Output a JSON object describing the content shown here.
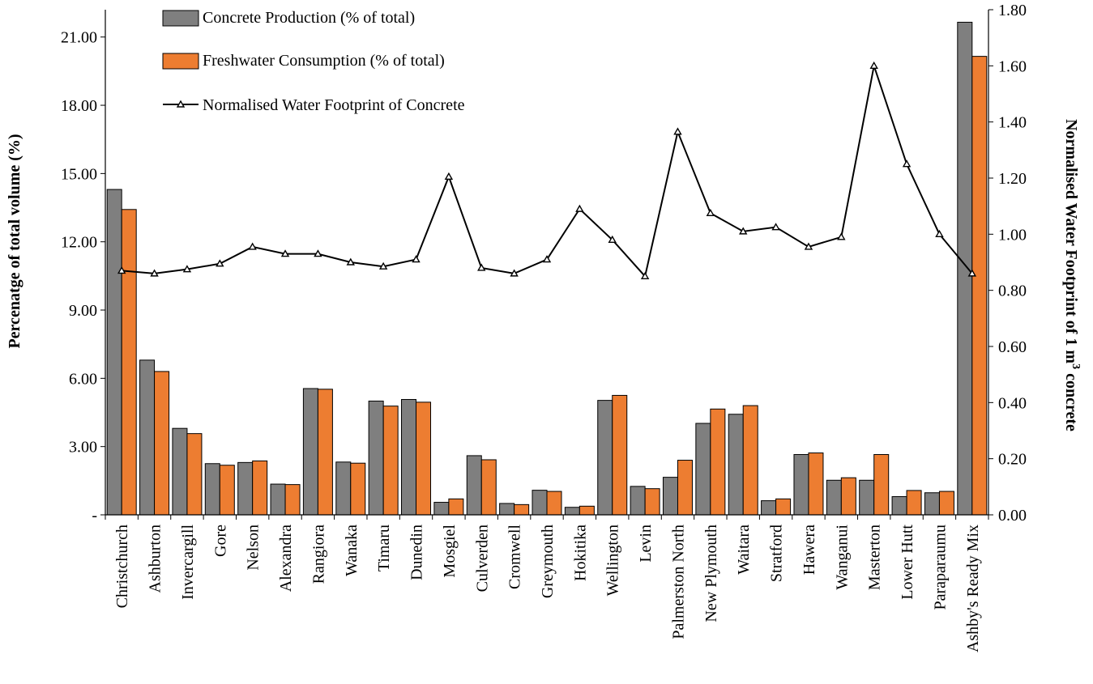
{
  "chart_data": {
    "type": "bar",
    "title": "",
    "categories": [
      "Christchurch",
      "Ashburton",
      "Invercargill",
      "Gore",
      "Nelson",
      "Alexandra",
      "Rangiora",
      "Wanaka",
      "Timaru",
      "Dunedin",
      "Mosgiel",
      "Culverden",
      "Cromwell",
      "Greymouth",
      "Hokitika",
      "Wellington",
      "Levin",
      "Palmerston North",
      "New Plymouth",
      "Waitara",
      "Stratford",
      "Hawera",
      "Wanganui",
      "Masterton",
      "Lower Hutt",
      "Paraparaumu",
      "Ashby's Ready Mix"
    ],
    "series": [
      {
        "name": "Concrete Production (% of total)",
        "type": "bar",
        "axis": "left",
        "color": "#7f7f7f",
        "values": [
          14.3,
          6.8,
          3.8,
          2.25,
          2.3,
          1.35,
          5.55,
          2.32,
          5.0,
          5.07,
          0.55,
          2.6,
          0.5,
          1.08,
          0.33,
          5.03,
          1.25,
          1.65,
          4.02,
          4.42,
          0.62,
          2.65,
          1.52,
          1.52,
          0.8,
          0.97,
          21.65
        ]
      },
      {
        "name": "Freshwater Consumption (% of total)",
        "type": "bar",
        "axis": "left",
        "color": "#ed7d31",
        "values": [
          13.42,
          6.3,
          3.57,
          2.18,
          2.37,
          1.33,
          5.52,
          2.27,
          4.78,
          4.95,
          0.7,
          2.42,
          0.45,
          1.03,
          0.38,
          5.25,
          1.15,
          2.4,
          4.65,
          4.8,
          0.7,
          2.72,
          1.63,
          2.65,
          1.07,
          1.03,
          20.15
        ]
      },
      {
        "name": "Normalised Water Footprint of Concrete",
        "type": "line",
        "axis": "right",
        "color": "#000000",
        "marker": "triangle",
        "values": [
          0.87,
          0.86,
          0.875,
          0.895,
          0.955,
          0.93,
          0.93,
          0.9,
          0.885,
          0.91,
          1.205,
          0.88,
          0.86,
          0.91,
          1.09,
          0.98,
          0.85,
          1.365,
          1.075,
          1.01,
          1.025,
          0.955,
          0.99,
          1.6,
          1.25,
          1.0,
          0.86
        ]
      }
    ],
    "y_left": {
      "label": "Percenatge of total volume (%)",
      "ylim": [
        0,
        22.2
      ],
      "ticks": [
        0,
        3,
        6,
        9,
        12,
        15,
        18,
        21
      ],
      "tick_labels": [
        "-",
        "3.00",
        "6.00",
        "9.00",
        "12.00",
        "15.00",
        "18.00",
        "21.00"
      ]
    },
    "y_right": {
      "label": "Normalised  Water Footprint of 1 m",
      "label_superscript": "3",
      "label_suffix": " concrete",
      "ylim": [
        0,
        1.8
      ],
      "ticks": [
        0,
        0.2,
        0.4,
        0.6,
        0.8,
        1.0,
        1.2,
        1.4,
        1.6,
        1.8
      ],
      "tick_labels": [
        "0.00",
        "0.20",
        "0.40",
        "0.60",
        "0.80",
        "1.00",
        "1.20",
        "1.40",
        "1.60",
        "1.80"
      ]
    },
    "xlabel": "",
    "grid": false,
    "legend_placement": "top-left"
  }
}
